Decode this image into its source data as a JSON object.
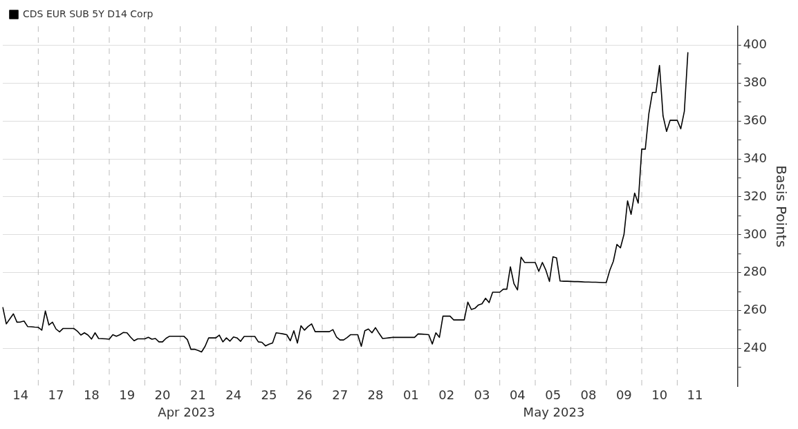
{
  "chart_data": {
    "type": "line",
    "ylabel": "Basis Points",
    "legend": "top left",
    "marker": "none",
    "line_style": "solid",
    "grid": true,
    "categories": [
      null,
      null,
      null,
      null,
      null,
      "14",
      null,
      null,
      null,
      null,
      null,
      null,
      null,
      null,
      null,
      "17",
      null,
      null,
      null,
      null,
      null,
      null,
      null,
      null,
      null,
      "18",
      null,
      null,
      null,
      null,
      null,
      null,
      null,
      null,
      null,
      "19",
      null,
      null,
      null,
      null,
      null,
      null,
      null,
      null,
      null,
      "20",
      null,
      null,
      null,
      null,
      null,
      null,
      null,
      null,
      null,
      "21",
      null,
      null,
      null,
      null,
      null,
      null,
      null,
      null,
      null,
      "24",
      null,
      null,
      null,
      null,
      null,
      null,
      null,
      null,
      null,
      "25",
      null,
      null,
      null,
      null,
      null,
      null,
      null,
      null,
      null,
      "26",
      null,
      null,
      null,
      null,
      null,
      null,
      null,
      null,
      null,
      "27",
      null,
      null,
      null,
      null,
      null,
      null,
      null,
      null,
      null,
      "28",
      null,
      null,
      null,
      null,
      null,
      null,
      null,
      null,
      null,
      "01",
      null,
      null,
      null,
      null,
      null,
      null,
      null,
      null,
      null,
      "02",
      null,
      null,
      null,
      null,
      null,
      null,
      null,
      null,
      null,
      "03",
      null,
      null,
      null,
      null,
      null,
      null,
      null,
      null,
      null,
      "04",
      null,
      null,
      null,
      null,
      null,
      null,
      null,
      null,
      null,
      "05",
      null,
      null,
      null,
      null,
      null,
      null,
      null,
      null,
      null,
      "08",
      null,
      null,
      null,
      null,
      null,
      null,
      null,
      null,
      null,
      "09",
      null,
      null,
      null,
      null,
      null,
      null,
      null,
      null,
      null,
      "10",
      null,
      null,
      null,
      null,
      null,
      null,
      null,
      null,
      null,
      "11",
      null,
      null,
      null,
      null,
      null,
      null,
      null,
      null,
      null,
      null,
      null,
      null
    ],
    "ylim": [
      220,
      410
    ],
    "yticks": [
      {
        "value": 230,
        "label": null
      },
      240,
      {
        "value": 250,
        "label": null
      },
      260,
      {
        "value": 270,
        "label": null
      },
      280,
      {
        "value": 290,
        "label": null
      },
      300,
      {
        "value": 310,
        "label": null
      },
      320,
      {
        "value": 330,
        "label": null
      },
      340,
      {
        "value": 350,
        "label": null
      },
      360,
      {
        "value": 370,
        "label": null
      },
      380,
      {
        "value": 390,
        "label": null
      },
      400
    ],
    "annotations": [
      "Apr 2023",
      "May 2023"
    ],
    "series": [
      {
        "name": "CDS EUR SUB 5Y D14 Corp",
        "color": "#000000",
        "values": [
          261.8,
          253,
          255.7,
          258.3,
          253.9,
          254,
          254.5,
          251.6,
          251.5,
          251.3,
          251.2,
          249.7,
          259.8,
          252.4,
          253.9,
          250.3,
          248.8,
          250.6,
          250.6,
          250.6,
          250.6,
          249.2,
          247.1,
          248.3,
          247.1,
          245,
          248.3,
          245.3,
          245.2,
          245.1,
          244.9,
          247.3,
          246.5,
          247.3,
          248.5,
          248.3,
          246,
          244.1,
          245.1,
          245.1,
          245.1,
          245.9,
          244.9,
          245.3,
          243.5,
          243.5,
          245.4,
          246.5,
          246.5,
          246.5,
          246.5,
          246.5,
          244.7,
          239.6,
          239.6,
          239,
          238.2,
          241.2,
          245.6,
          245.6,
          245.6,
          247.1,
          243.5,
          245.6,
          243.9,
          246.1,
          245.6,
          243.8,
          246.4,
          246.4,
          246.4,
          246.4,
          243.5,
          243.3,
          241.4,
          242.3,
          242.9,
          248.3,
          248,
          247.7,
          247.3,
          244.1,
          249.4,
          242.9,
          252,
          249.7,
          251.6,
          253,
          248.9,
          248.9,
          248.9,
          248.9,
          248.9,
          250,
          246.1,
          244.5,
          244.5,
          245.8,
          247.3,
          247.3,
          247.3,
          241.2,
          249.4,
          250.3,
          248.3,
          251,
          248,
          245.3,
          245.5,
          245.7,
          245.9,
          245.9,
          245.9,
          245.9,
          245.9,
          245.9,
          245.9,
          247.7,
          247.6,
          247.5,
          247.3,
          242.4,
          248.3,
          245.9,
          257.1,
          257.1,
          257.1,
          255.1,
          255.1,
          255.1,
          255.1,
          264.5,
          260.6,
          261.2,
          263,
          263.6,
          266.5,
          264.2,
          269.7,
          269.7,
          269.7,
          271.3,
          271.3,
          283.1,
          274.2,
          270.9,
          288.2,
          285.4,
          285.4,
          285.4,
          285.4,
          280.7,
          285.4,
          281.3,
          275.4,
          288.4,
          287.8,
          275.6,
          275.5,
          275.5,
          275.4,
          275.3,
          275.3,
          275.2,
          275.1,
          275.1,
          275,
          275,
          274.9,
          274.8,
          274.8,
          281.3,
          286,
          294.9,
          293.1,
          300.2,
          317.9,
          310.8,
          322,
          316.7,
          345.2,
          345.2,
          363.9,
          375.1,
          375.1,
          389.3,
          362.7,
          354.5,
          360.4,
          360.4,
          360.4,
          355.9,
          365.1,
          396.3,
          null,
          null,
          null,
          null,
          null,
          null,
          null,
          null,
          null,
          null,
          null,
          null,
          null,
          null
        ]
      }
    ]
  }
}
